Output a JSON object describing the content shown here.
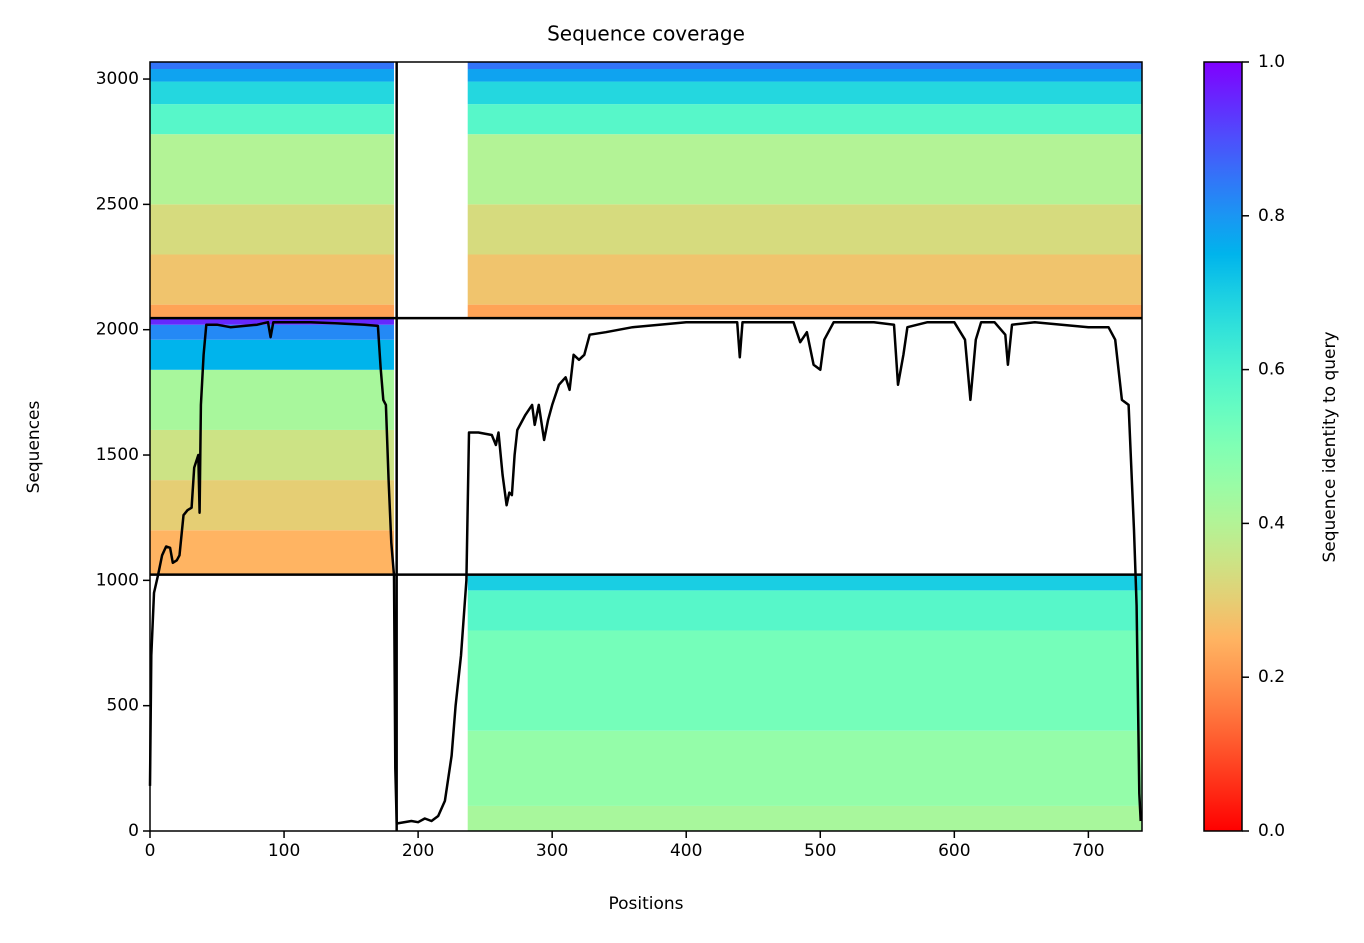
{
  "chart_data": {
    "type": "coverage",
    "title": "Sequence coverage",
    "xlabel": "Positions",
    "ylabel": "Sequences",
    "xlim": [
      0,
      740
    ],
    "ylim": [
      0,
      3068
    ],
    "xticks": [
      0,
      100,
      200,
      300,
      400,
      500,
      600,
      700
    ],
    "yticks": [
      0,
      500,
      1000,
      1500,
      2000,
      2500,
      3000
    ],
    "colormap": "rainbow_r",
    "colorbar": {
      "label": "Sequence identity to query",
      "lim": [
        0,
        1
      ],
      "ticks": [
        {
          "value": 0,
          "label": "0.0"
        },
        0.2,
        0.4,
        0.6,
        0.8,
        {
          "value": 1,
          "label": "1.0"
        }
      ]
    },
    "dividers": {
      "x": [
        184
      ],
      "y": [
        1023,
        2046
      ]
    },
    "blocks": [
      {
        "x": [
          0,
          182
        ],
        "bands": [
          {
            "y": [
              2046,
              2100
            ],
            "identity": 0.22
          },
          {
            "y": [
              2100,
              2300
            ],
            "identity": 0.28
          },
          {
            "y": [
              2300,
              2500
            ],
            "identity": 0.33
          },
          {
            "y": [
              2500,
              2780
            ],
            "identity": 0.4
          },
          {
            "y": [
              2780,
              2900
            ],
            "identity": 0.58
          },
          {
            "y": [
              2900,
              2990
            ],
            "identity": 0.68
          },
          {
            "y": [
              2990,
              3040
            ],
            "identity": 0.78
          },
          {
            "y": [
              3040,
              3068
            ],
            "identity": 0.85
          }
        ]
      },
      {
        "x": [
          237,
          740
        ],
        "bands": [
          {
            "y": [
              2046,
              2100
            ],
            "identity": 0.22
          },
          {
            "y": [
              2100,
              2300
            ],
            "identity": 0.28
          },
          {
            "y": [
              2300,
              2500
            ],
            "identity": 0.33
          },
          {
            "y": [
              2500,
              2780
            ],
            "identity": 0.4
          },
          {
            "y": [
              2780,
              2900
            ],
            "identity": 0.58
          },
          {
            "y": [
              2900,
              2990
            ],
            "identity": 0.68
          },
          {
            "y": [
              2990,
              3040
            ],
            "identity": 0.78
          },
          {
            "y": [
              3040,
              3068
            ],
            "identity": 0.85
          }
        ]
      },
      {
        "x": [
          0,
          182
        ],
        "bands": [
          {
            "y": [
              1023,
              1200
            ],
            "identity": 0.25
          },
          {
            "y": [
              1200,
              1400
            ],
            "identity": 0.3
          },
          {
            "y": [
              1400,
              1600
            ],
            "identity": 0.35
          },
          {
            "y": [
              1600,
              1840
            ],
            "identity": 0.42
          },
          {
            "y": [
              1840,
              1960
            ],
            "identity": 0.75
          },
          {
            "y": [
              1960,
              2020
            ],
            "identity": 0.82
          },
          {
            "y": [
              2020,
              2046
            ],
            "identity": 0.95
          }
        ]
      },
      {
        "x": [
          237,
          740
        ],
        "bands": [
          {
            "y": [
              0,
              100
            ],
            "identity": 0.42
          },
          {
            "y": [
              100,
              400
            ],
            "identity": 0.46
          },
          {
            "y": [
              400,
              800
            ],
            "identity": 0.52
          },
          {
            "y": [
              800,
              960
            ],
            "identity": 0.58
          },
          {
            "y": [
              960,
              1023
            ],
            "identity": 0.7
          }
        ]
      }
    ],
    "coverage": {
      "color": "#000000",
      "x": [
        0,
        1,
        3,
        6,
        9,
        12,
        15,
        17,
        20,
        22,
        25,
        28,
        31,
        33,
        36,
        37,
        38,
        40,
        42,
        50,
        60,
        80,
        88,
        90,
        92,
        100,
        120,
        140,
        160,
        170,
        172,
        174,
        176,
        178,
        180,
        182,
        183,
        184,
        195,
        200,
        205,
        210,
        215,
        220,
        225,
        228,
        232,
        236,
        238,
        245,
        255,
        258,
        260,
        263,
        266,
        268,
        270,
        272,
        274,
        280,
        285,
        287,
        290,
        294,
        297,
        300,
        305,
        310,
        313,
        316,
        320,
        324,
        328,
        340,
        360,
        380,
        400,
        420,
        438,
        440,
        442,
        460,
        480,
        485,
        490,
        495,
        500,
        503,
        510,
        530,
        540,
        555,
        558,
        562,
        565,
        580,
        600,
        608,
        612,
        616,
        620,
        630,
        638,
        640,
        643,
        660,
        680,
        700,
        715,
        720,
        725,
        730,
        734,
        736,
        738,
        739
      ],
      "values": [
        180,
        700,
        950,
        1020,
        1100,
        1135,
        1130,
        1070,
        1080,
        1100,
        1260,
        1280,
        1290,
        1450,
        1500,
        1270,
        1700,
        1900,
        2020,
        2020,
        2010,
        2020,
        2030,
        1970,
        2030,
        2030,
        2030,
        2025,
        2020,
        2015,
        1850,
        1720,
        1700,
        1400,
        1150,
        1020,
        250,
        30,
        40,
        35,
        50,
        40,
        60,
        120,
        300,
        500,
        700,
        1000,
        1590,
        1590,
        1580,
        1540,
        1590,
        1420,
        1300,
        1350,
        1340,
        1500,
        1600,
        1660,
        1700,
        1620,
        1700,
        1560,
        1640,
        1700,
        1780,
        1810,
        1760,
        1900,
        1880,
        1900,
        1980,
        1990,
        2010,
        2020,
        2030,
        2030,
        2030,
        1890,
        2030,
        2030,
        2030,
        1950,
        1990,
        1860,
        1840,
        1960,
        2030,
        2030,
        2030,
        2020,
        1780,
        1900,
        2010,
        2030,
        2030,
        1960,
        1720,
        1960,
        2030,
        2030,
        1980,
        1860,
        2020,
        2030,
        2020,
        2010,
        2010,
        1960,
        1720,
        1700,
        1200,
        900,
        150,
        40
      ]
    }
  }
}
